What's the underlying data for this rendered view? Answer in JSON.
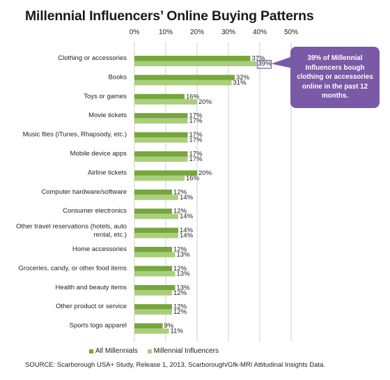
{
  "title": "Millennial Influencers’ Online Buying Patterns",
  "source": "SOURCE: Scarborough USA+ Study, Release 1, 2013, Scarborough/Gfk-MRI Attitudinal Insights Data.",
  "callout": "39% of Millennial Influencers bough clothing or accessories online in the past 12 months.",
  "colors": {
    "all_millennials": "#76a63c",
    "millennial_influencers": "#a9cf7c",
    "callout": "#7a5aa6",
    "grid": "#cfcfcf"
  },
  "chart_data": {
    "type": "bar",
    "orientation": "horizontal",
    "title": "Millennial Influencers’ Online Buying Patterns",
    "xlim": [
      0,
      50
    ],
    "x_ticks": [
      "0%",
      "10%",
      "20%",
      "30%",
      "40%",
      "50%"
    ],
    "tick_labels_position": "top",
    "grid": true,
    "legend_position": "bottom",
    "categories": [
      "Clothing or accessories",
      "Books",
      "Toys or games",
      "Movie tickets",
      "Music files (iTunes, Rhapsody, etc.)",
      "Mobile device apps",
      "Airline tickets",
      "Computer hardware/software",
      "Consumer electronics",
      "Other travel reservations (hotels, auto rental, etc.)",
      "Home accessories",
      "Groceries, candy, or other food items",
      "Health and beauty items",
      "Other product or service",
      "Sports logo apparel"
    ],
    "series": [
      {
        "name": "All Millennials",
        "values": [
          37,
          32,
          16,
          17,
          17,
          17,
          20,
          12,
          12,
          14,
          12,
          12,
          13,
          12,
          9
        ]
      },
      {
        "name": "Millennial Influencers",
        "values": [
          39,
          31,
          20,
          17,
          17,
          17,
          16,
          14,
          14,
          14,
          13,
          13,
          12,
          12,
          11
        ]
      }
    ]
  }
}
